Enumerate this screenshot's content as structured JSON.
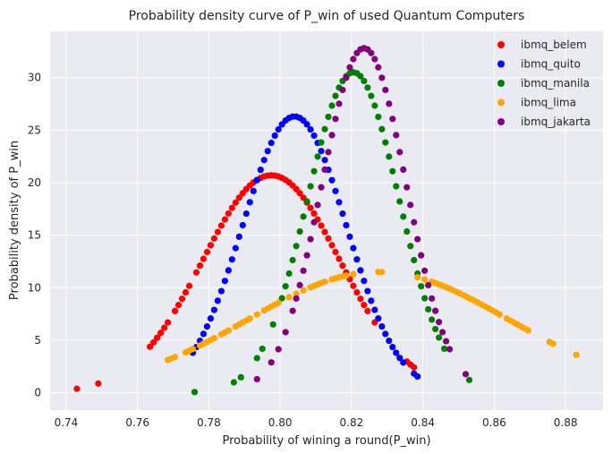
{
  "chart_data": {
    "type": "scatter",
    "title": "Probability density curve of P_win of used Quantum Computers",
    "xlabel": "Probability of wining a round(P_win)",
    "ylabel": "Probability density of P_win",
    "xlim": [
      0.7355,
      0.8905
    ],
    "ylim": [
      -1.65,
      34.4
    ],
    "xticks": [
      0.74,
      0.76,
      0.78,
      0.8,
      0.82,
      0.84,
      0.86,
      0.88
    ],
    "xtick_labels": [
      "0.74",
      "0.76",
      "0.78",
      "0.80",
      "0.82",
      "0.84",
      "0.86",
      "0.88"
    ],
    "yticks": [
      0,
      5,
      10,
      15,
      20,
      25,
      30
    ],
    "ytick_labels": [
      "0",
      "5",
      "10",
      "15",
      "20",
      "25",
      "30"
    ],
    "grid": true,
    "legend_position": "top-right",
    "series": [
      {
        "name": "ibmq_belem",
        "color": "#ff0000",
        "dist": {
          "mean": 0.7975,
          "sd": 0.0193,
          "peak": 20.7
        },
        "x": [
          0.743,
          0.749,
          0.7635,
          0.7645,
          0.7655,
          0.7665,
          0.7675,
          0.7685,
          0.7705,
          0.7715,
          0.7725,
          0.7735,
          0.7745,
          0.7765,
          0.7775,
          0.7785,
          0.7795,
          0.7805,
          0.7815,
          0.7825,
          0.7835,
          0.7845,
          0.7855,
          0.7865,
          0.7875,
          0.7885,
          0.7895,
          0.7905,
          0.7915,
          0.7925,
          0.7935,
          0.7945,
          0.7955,
          0.7965,
          0.7975,
          0.7985,
          0.7995,
          0.8005,
          0.8015,
          0.8025,
          0.8035,
          0.8045,
          0.8055,
          0.8065,
          0.8075,
          0.8085,
          0.8095,
          0.8105,
          0.8115,
          0.8125,
          0.8135,
          0.8145,
          0.8155,
          0.8165,
          0.8175,
          0.8185,
          0.8195,
          0.8205,
          0.8215,
          0.8225,
          0.8235,
          0.8245,
          0.8265,
          0.8355,
          0.8365,
          0.8375
        ]
      },
      {
        "name": "ibmq_quito",
        "color": "#0000ff",
        "dist": {
          "mean": 0.804,
          "sd": 0.0145,
          "peak": 26.3
        },
        "x": [
          0.7755,
          0.7765,
          0.7775,
          0.7785,
          0.7795,
          0.7805,
          0.7815,
          0.7825,
          0.7835,
          0.7845,
          0.7855,
          0.7865,
          0.7875,
          0.7885,
          0.7895,
          0.7905,
          0.7915,
          0.7925,
          0.7935,
          0.7945,
          0.7955,
          0.7965,
          0.7975,
          0.7985,
          0.7995,
          0.8005,
          0.8015,
          0.8025,
          0.8035,
          0.8045,
          0.8055,
          0.8065,
          0.8075,
          0.8085,
          0.8095,
          0.8105,
          0.8115,
          0.8125,
          0.8135,
          0.8145,
          0.8155,
          0.8165,
          0.8175,
          0.8185,
          0.8195,
          0.8205,
          0.8215,
          0.8225,
          0.8235,
          0.8245,
          0.8255,
          0.8265,
          0.8275,
          0.8285,
          0.8295,
          0.8305,
          0.8315,
          0.8325,
          0.8335,
          0.8345,
          0.8375,
          0.8385
        ]
      },
      {
        "name": "ibmq_manila",
        "color": "#008000",
        "dist": {
          "mean": 0.8205,
          "sd": 0.0128,
          "peak": 30.5
        },
        "x": [
          0.776,
          0.787,
          0.789,
          0.7935,
          0.795,
          0.798,
          0.8005,
          0.8015,
          0.8025,
          0.8035,
          0.8045,
          0.8055,
          0.8065,
          0.8075,
          0.8085,
          0.8095,
          0.8105,
          0.8115,
          0.8125,
          0.8135,
          0.8145,
          0.8155,
          0.8165,
          0.8175,
          0.8185,
          0.8195,
          0.8205,
          0.8215,
          0.8225,
          0.8235,
          0.8245,
          0.8255,
          0.8265,
          0.8275,
          0.8285,
          0.8295,
          0.8305,
          0.8315,
          0.8325,
          0.8335,
          0.8345,
          0.8355,
          0.8365,
          0.8375,
          0.8385,
          0.8395,
          0.8405,
          0.8415,
          0.8425,
          0.8435,
          0.8445,
          0.846,
          0.853
        ]
      },
      {
        "name": "ibmq_lima",
        "color": "#ffa500",
        "dist": {
          "mean": 0.8275,
          "sd": 0.0365,
          "peak": 11.5
        },
        "x": [
          0.7685,
          0.7695,
          0.7705,
          0.7735,
          0.7745,
          0.7755,
          0.7775,
          0.7785,
          0.7795,
          0.7805,
          0.7815,
          0.7835,
          0.7845,
          0.7855,
          0.7875,
          0.7885,
          0.7895,
          0.7905,
          0.7915,
          0.7935,
          0.7955,
          0.7965,
          0.7975,
          0.7985,
          0.7995,
          0.8025,
          0.8045,
          0.8065,
          0.8085,
          0.8095,
          0.8105,
          0.8115,
          0.8125,
          0.8145,
          0.8155,
          0.8165,
          0.8175,
          0.8185,
          0.8205,
          0.8275,
          0.8285,
          0.8385,
          0.8405,
          0.8425,
          0.8435,
          0.8445,
          0.8455,
          0.8465,
          0.8475,
          0.8485,
          0.8495,
          0.8505,
          0.8515,
          0.8525,
          0.8535,
          0.8545,
          0.8555,
          0.8565,
          0.8575,
          0.8585,
          0.8595,
          0.8605,
          0.8615,
          0.8635,
          0.8645,
          0.8655,
          0.8665,
          0.8675,
          0.8685,
          0.8695,
          0.8755,
          0.8765,
          0.883
        ]
      },
      {
        "name": "ibmq_jakarta",
        "color": "#800080",
        "dist": {
          "mean": 0.8235,
          "sd": 0.0118,
          "peak": 32.8
        },
        "x": [
          0.7935,
          0.7975,
          0.7995,
          0.8015,
          0.8035,
          0.8045,
          0.8055,
          0.8065,
          0.8075,
          0.8085,
          0.8095,
          0.8105,
          0.8115,
          0.8125,
          0.8135,
          0.8145,
          0.8155,
          0.8165,
          0.8175,
          0.8185,
          0.8195,
          0.8205,
          0.8215,
          0.8225,
          0.8235,
          0.8245,
          0.8255,
          0.8265,
          0.8275,
          0.8285,
          0.8295,
          0.8305,
          0.8315,
          0.8325,
          0.8335,
          0.8345,
          0.8355,
          0.8365,
          0.8375,
          0.8385,
          0.8395,
          0.8405,
          0.8415,
          0.8425,
          0.8435,
          0.8445,
          0.8455,
          0.8465,
          0.8475,
          0.852
        ]
      }
    ]
  }
}
